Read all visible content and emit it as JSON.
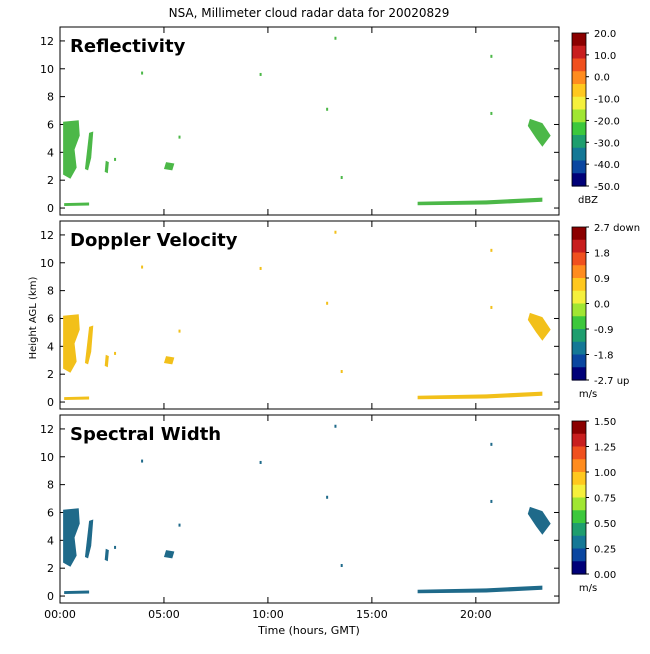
{
  "title": "NSA, Millimeter cloud radar data for 20020829",
  "xlabel": "Time (hours, GMT)",
  "ylabel": "Height AGL (km)",
  "colors": {
    "reflectivity_cloud": "#4cb848",
    "doppler_cloud": "#f2c01a",
    "width_cloud": "#1f6a8a"
  },
  "chart_data": [
    {
      "type": "heatmap",
      "panel_title": "Reflectivity",
      "x_ticks": [
        "00:00",
        "05:00",
        "10:00",
        "15:00",
        "20:00"
      ],
      "x_tick_values": [
        0,
        5,
        10,
        15,
        20
      ],
      "xlim": [
        0,
        24
      ],
      "y_ticks": [
        "0",
        "2",
        "4",
        "6",
        "8",
        "10",
        "12"
      ],
      "y_tick_values": [
        0,
        2,
        4,
        6,
        8,
        10,
        12
      ],
      "ylim": [
        -0.5,
        13
      ],
      "colorbar_labels": [
        "20.0",
        "10.0",
        "0.0",
        "-10.0",
        "-20.0",
        "-30.0",
        "-40.0",
        "-50.0"
      ],
      "colorbar_range": [
        -50,
        20
      ],
      "colorbar_units": "dBZ"
    },
    {
      "type": "heatmap",
      "panel_title": "Doppler Velocity",
      "x_ticks": [
        "00:00",
        "05:00",
        "10:00",
        "15:00",
        "20:00"
      ],
      "x_tick_values": [
        0,
        5,
        10,
        15,
        20
      ],
      "xlim": [
        0,
        24
      ],
      "y_ticks": [
        "0",
        "2",
        "4",
        "6",
        "8",
        "10",
        "12"
      ],
      "y_tick_values": [
        0,
        2,
        4,
        6,
        8,
        10,
        12
      ],
      "ylim": [
        -0.5,
        13
      ],
      "colorbar_labels": [
        "2.7 down",
        "1.8",
        "0.9",
        "0.0",
        "-0.9",
        "-1.8",
        "-2.7 up"
      ],
      "colorbar_range": [
        -2.7,
        2.7
      ],
      "colorbar_units": "m/s"
    },
    {
      "type": "heatmap",
      "panel_title": "Spectral Width",
      "x_ticks": [
        "00:00",
        "05:00",
        "10:00",
        "15:00",
        "20:00"
      ],
      "x_tick_values": [
        0,
        5,
        10,
        15,
        20
      ],
      "xlim": [
        0,
        24
      ],
      "y_ticks": [
        "0",
        "2",
        "4",
        "6",
        "8",
        "10",
        "12"
      ],
      "y_tick_values": [
        0,
        2,
        4,
        6,
        8,
        10,
        12
      ],
      "ylim": [
        -0.5,
        13
      ],
      "colorbar_labels": [
        "1.50",
        "1.25",
        "1.00",
        "0.75",
        "0.50",
        "0.25",
        "0.00"
      ],
      "colorbar_range": [
        0,
        1.5
      ],
      "colorbar_units": "m/s"
    }
  ]
}
